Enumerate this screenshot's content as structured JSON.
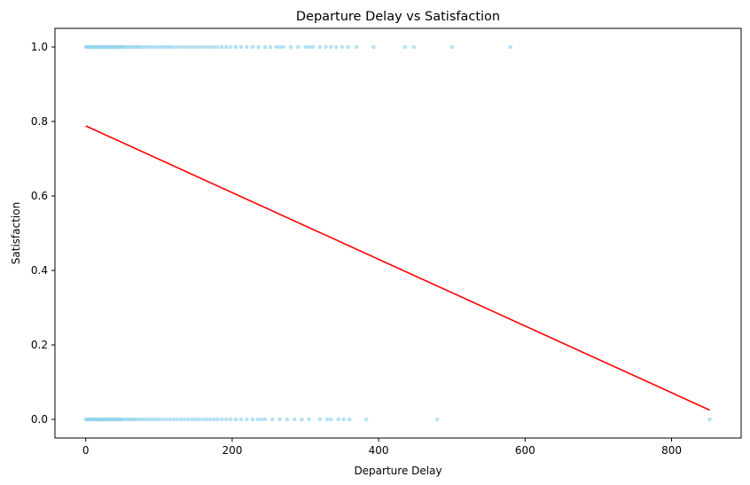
{
  "chart_data": {
    "type": "scatter",
    "title": "Departure Delay vs Satisfaction",
    "xlabel": "Departure Delay",
    "ylabel": "Satisfaction",
    "xlim": [
      -42,
      895
    ],
    "ylim": [
      -0.05,
      1.05
    ],
    "x_ticks": [
      0,
      200,
      400,
      600,
      800
    ],
    "y_ticks": [
      0.0,
      0.2,
      0.4,
      0.6,
      0.8,
      1.0
    ],
    "x_tick_labels": [
      "0",
      "200",
      "400",
      "600",
      "800"
    ],
    "y_tick_labels": [
      "0.0",
      "0.2",
      "0.4",
      "0.6",
      "0.8",
      "1.0"
    ],
    "grid": false,
    "legend": "none",
    "point_color": "#87ceeb",
    "line_color": "#ff0000",
    "series": [
      {
        "kind": "points",
        "y": 1,
        "x": [
          0,
          2,
          4,
          6,
          8,
          10,
          12,
          14,
          16,
          18,
          20,
          22,
          24,
          26,
          28,
          30,
          32,
          34,
          36,
          38,
          40,
          42,
          44,
          46,
          48,
          50,
          52,
          55,
          58,
          61,
          64,
          67,
          70,
          73,
          76,
          80,
          84,
          88,
          92,
          96,
          100,
          104,
          108,
          112,
          116,
          120,
          125,
          130,
          135,
          140,
          145,
          150,
          155,
          160,
          165,
          170,
          175,
          180,
          186,
          192,
          198,
          205,
          212,
          220,
          228,
          236,
          245,
          252,
          260,
          265,
          270,
          280,
          290,
          300,
          305,
          310,
          320,
          328,
          335,
          342,
          350,
          358,
          370,
          393,
          436,
          448,
          500,
          580
        ]
      },
      {
        "kind": "points",
        "y": 0,
        "x": [
          0,
          2,
          4,
          6,
          8,
          10,
          12,
          14,
          16,
          18,
          20,
          22,
          24,
          26,
          28,
          30,
          32,
          34,
          36,
          38,
          40,
          42,
          44,
          46,
          48,
          50,
          53,
          56,
          59,
          62,
          65,
          68,
          72,
          76,
          80,
          84,
          88,
          92,
          96,
          100,
          105,
          110,
          115,
          120,
          125,
          130,
          135,
          140,
          145,
          150,
          155,
          160,
          165,
          170,
          175,
          180,
          186,
          192,
          198,
          205,
          212,
          220,
          228,
          235,
          240,
          245,
          255,
          265,
          275,
          285,
          295,
          305,
          320,
          330,
          335,
          345,
          352,
          360,
          383,
          480,
          852
        ]
      },
      {
        "kind": "line",
        "x": [
          0,
          852
        ],
        "y": [
          0.788,
          0.025
        ]
      }
    ]
  }
}
